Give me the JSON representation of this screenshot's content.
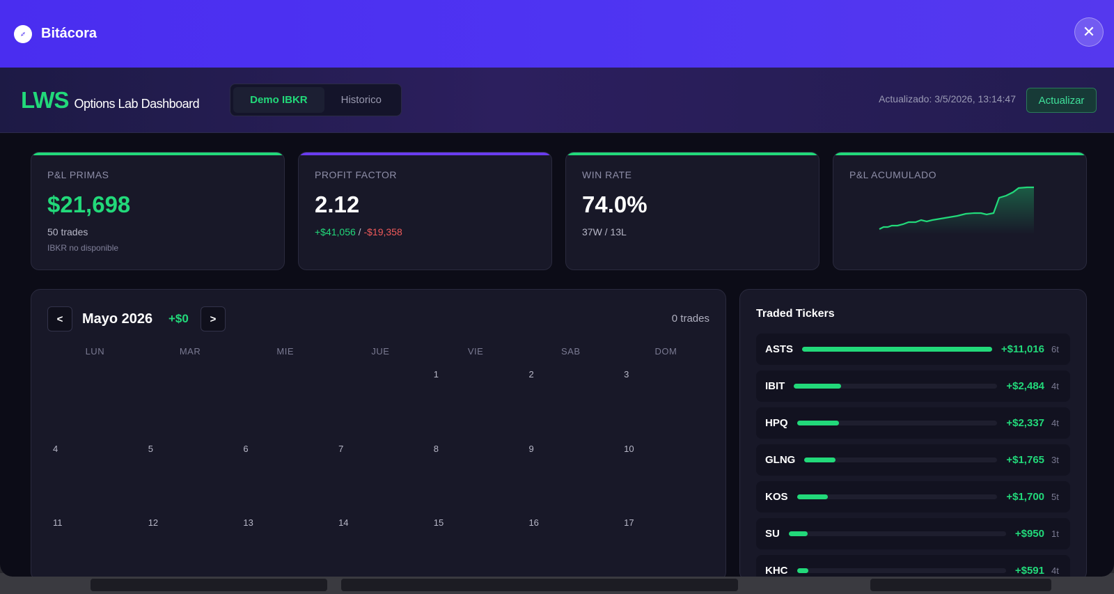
{
  "window": {
    "title": "Bitácora"
  },
  "header": {
    "brand": "LWS",
    "subtitle": "Options Lab Dashboard",
    "tabs": [
      {
        "label": "Demo IBKR",
        "active": true
      },
      {
        "label": "Historico",
        "active": false
      }
    ],
    "updated": "Actualizado: 3/5/2026, 13:14:47",
    "refresh_label": "Actualizar"
  },
  "cards": {
    "pnl": {
      "label": "P&L PRIMAS",
      "value": "$21,698",
      "trades": "50 trades",
      "note": "IBKR no disponible",
      "accent": "#22d97a"
    },
    "profit_factor": {
      "label": "PROFIT FACTOR",
      "value": "2.12",
      "gain": "+$41,056",
      "sep": " / ",
      "loss": "-$19,358",
      "accent": "#6a3cf0"
    },
    "win_rate": {
      "label": "WIN RATE",
      "value": "74.0%",
      "detail": "37W / 13L",
      "accent": "#22d97a"
    },
    "cumulative": {
      "label": "P&L ACUMULADO",
      "accent": "#22d97a"
    }
  },
  "calendar": {
    "prev_label": "<",
    "next_label": ">",
    "month": "Mayo 2026",
    "pnl": "+$0",
    "trades": "0 trades",
    "weekdays": [
      "LUN",
      "MAR",
      "MIE",
      "JUE",
      "VIE",
      "SAB",
      "DOM"
    ],
    "days": [
      "",
      "",
      "",
      "",
      "1",
      "2",
      "3",
      "4",
      "5",
      "6",
      "7",
      "8",
      "9",
      "10",
      "11",
      "12",
      "13",
      "14",
      "15",
      "16",
      "17"
    ]
  },
  "tickers": {
    "title": "Traded Tickers",
    "items": [
      {
        "symbol": "ASTS",
        "pnl": "+$11,016",
        "count": "6t",
        "share": 1.0
      },
      {
        "symbol": "IBIT",
        "pnl": "+$2,484",
        "count": "4t",
        "share": 0.23
      },
      {
        "symbol": "HPQ",
        "pnl": "+$2,337",
        "count": "4t",
        "share": 0.21
      },
      {
        "symbol": "GLNG",
        "pnl": "+$1,765",
        "count": "3t",
        "share": 0.16
      },
      {
        "symbol": "KOS",
        "pnl": "+$1,700",
        "count": "5t",
        "share": 0.155
      },
      {
        "symbol": "SU",
        "pnl": "+$950",
        "count": "1t",
        "share": 0.086
      },
      {
        "symbol": "KHC",
        "pnl": "+$591",
        "count": "4t",
        "share": 0.054
      }
    ]
  }
}
